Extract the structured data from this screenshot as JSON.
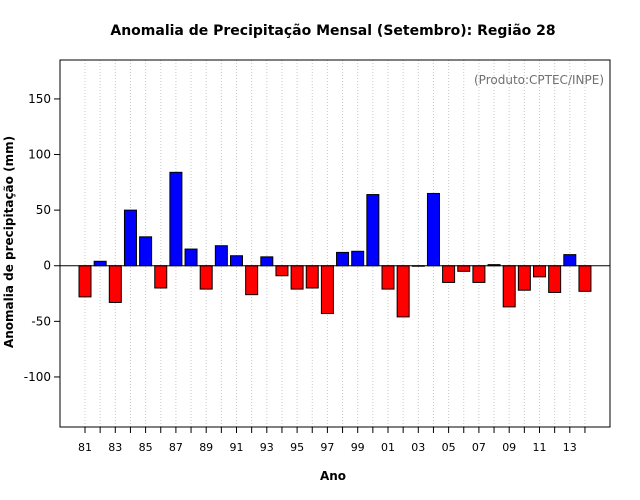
{
  "chart_data": {
    "type": "bar",
    "title": "Anomalia de Precipitação Mensal (Setembro): Região 28",
    "xlabel": "Ano",
    "ylabel": "Anomalia de precipitação (mm)",
    "annotation": "(Produto:CPTEC/INPE)",
    "ylim": [
      -145,
      185
    ],
    "yticks": [
      -100,
      -50,
      0,
      50,
      100,
      150
    ],
    "grid": "vertical-dotted",
    "positive_color": "#0000ff",
    "negative_color": "#ff0000",
    "categories": [
      "81",
      "82",
      "83",
      "84",
      "85",
      "86",
      "87",
      "88",
      "89",
      "90",
      "91",
      "92",
      "93",
      "94",
      "95",
      "96",
      "97",
      "98",
      "99",
      "00",
      "01",
      "02",
      "03",
      "04",
      "05",
      "06",
      "07",
      "08",
      "09",
      "10",
      "11",
      "12",
      "13",
      "14"
    ],
    "xtick_labels": [
      "81",
      "",
      "83",
      "",
      "85",
      "",
      "87",
      "",
      "89",
      "",
      "91",
      "",
      "93",
      "",
      "95",
      "",
      "97",
      "",
      "99",
      "",
      "01",
      "",
      "03",
      "",
      "05",
      "",
      "07",
      "",
      "09",
      "",
      "11",
      "",
      "13",
      ""
    ],
    "values": [
      -28,
      4,
      -33,
      50,
      26,
      -20,
      84,
      15,
      -21,
      18,
      9,
      -26,
      8,
      -9,
      -21,
      -20,
      -43,
      12,
      13,
      64,
      -21,
      -46,
      0,
      65,
      -15,
      -5,
      -15,
      1,
      -37,
      -22,
      -10,
      -24,
      10,
      -23
    ]
  }
}
